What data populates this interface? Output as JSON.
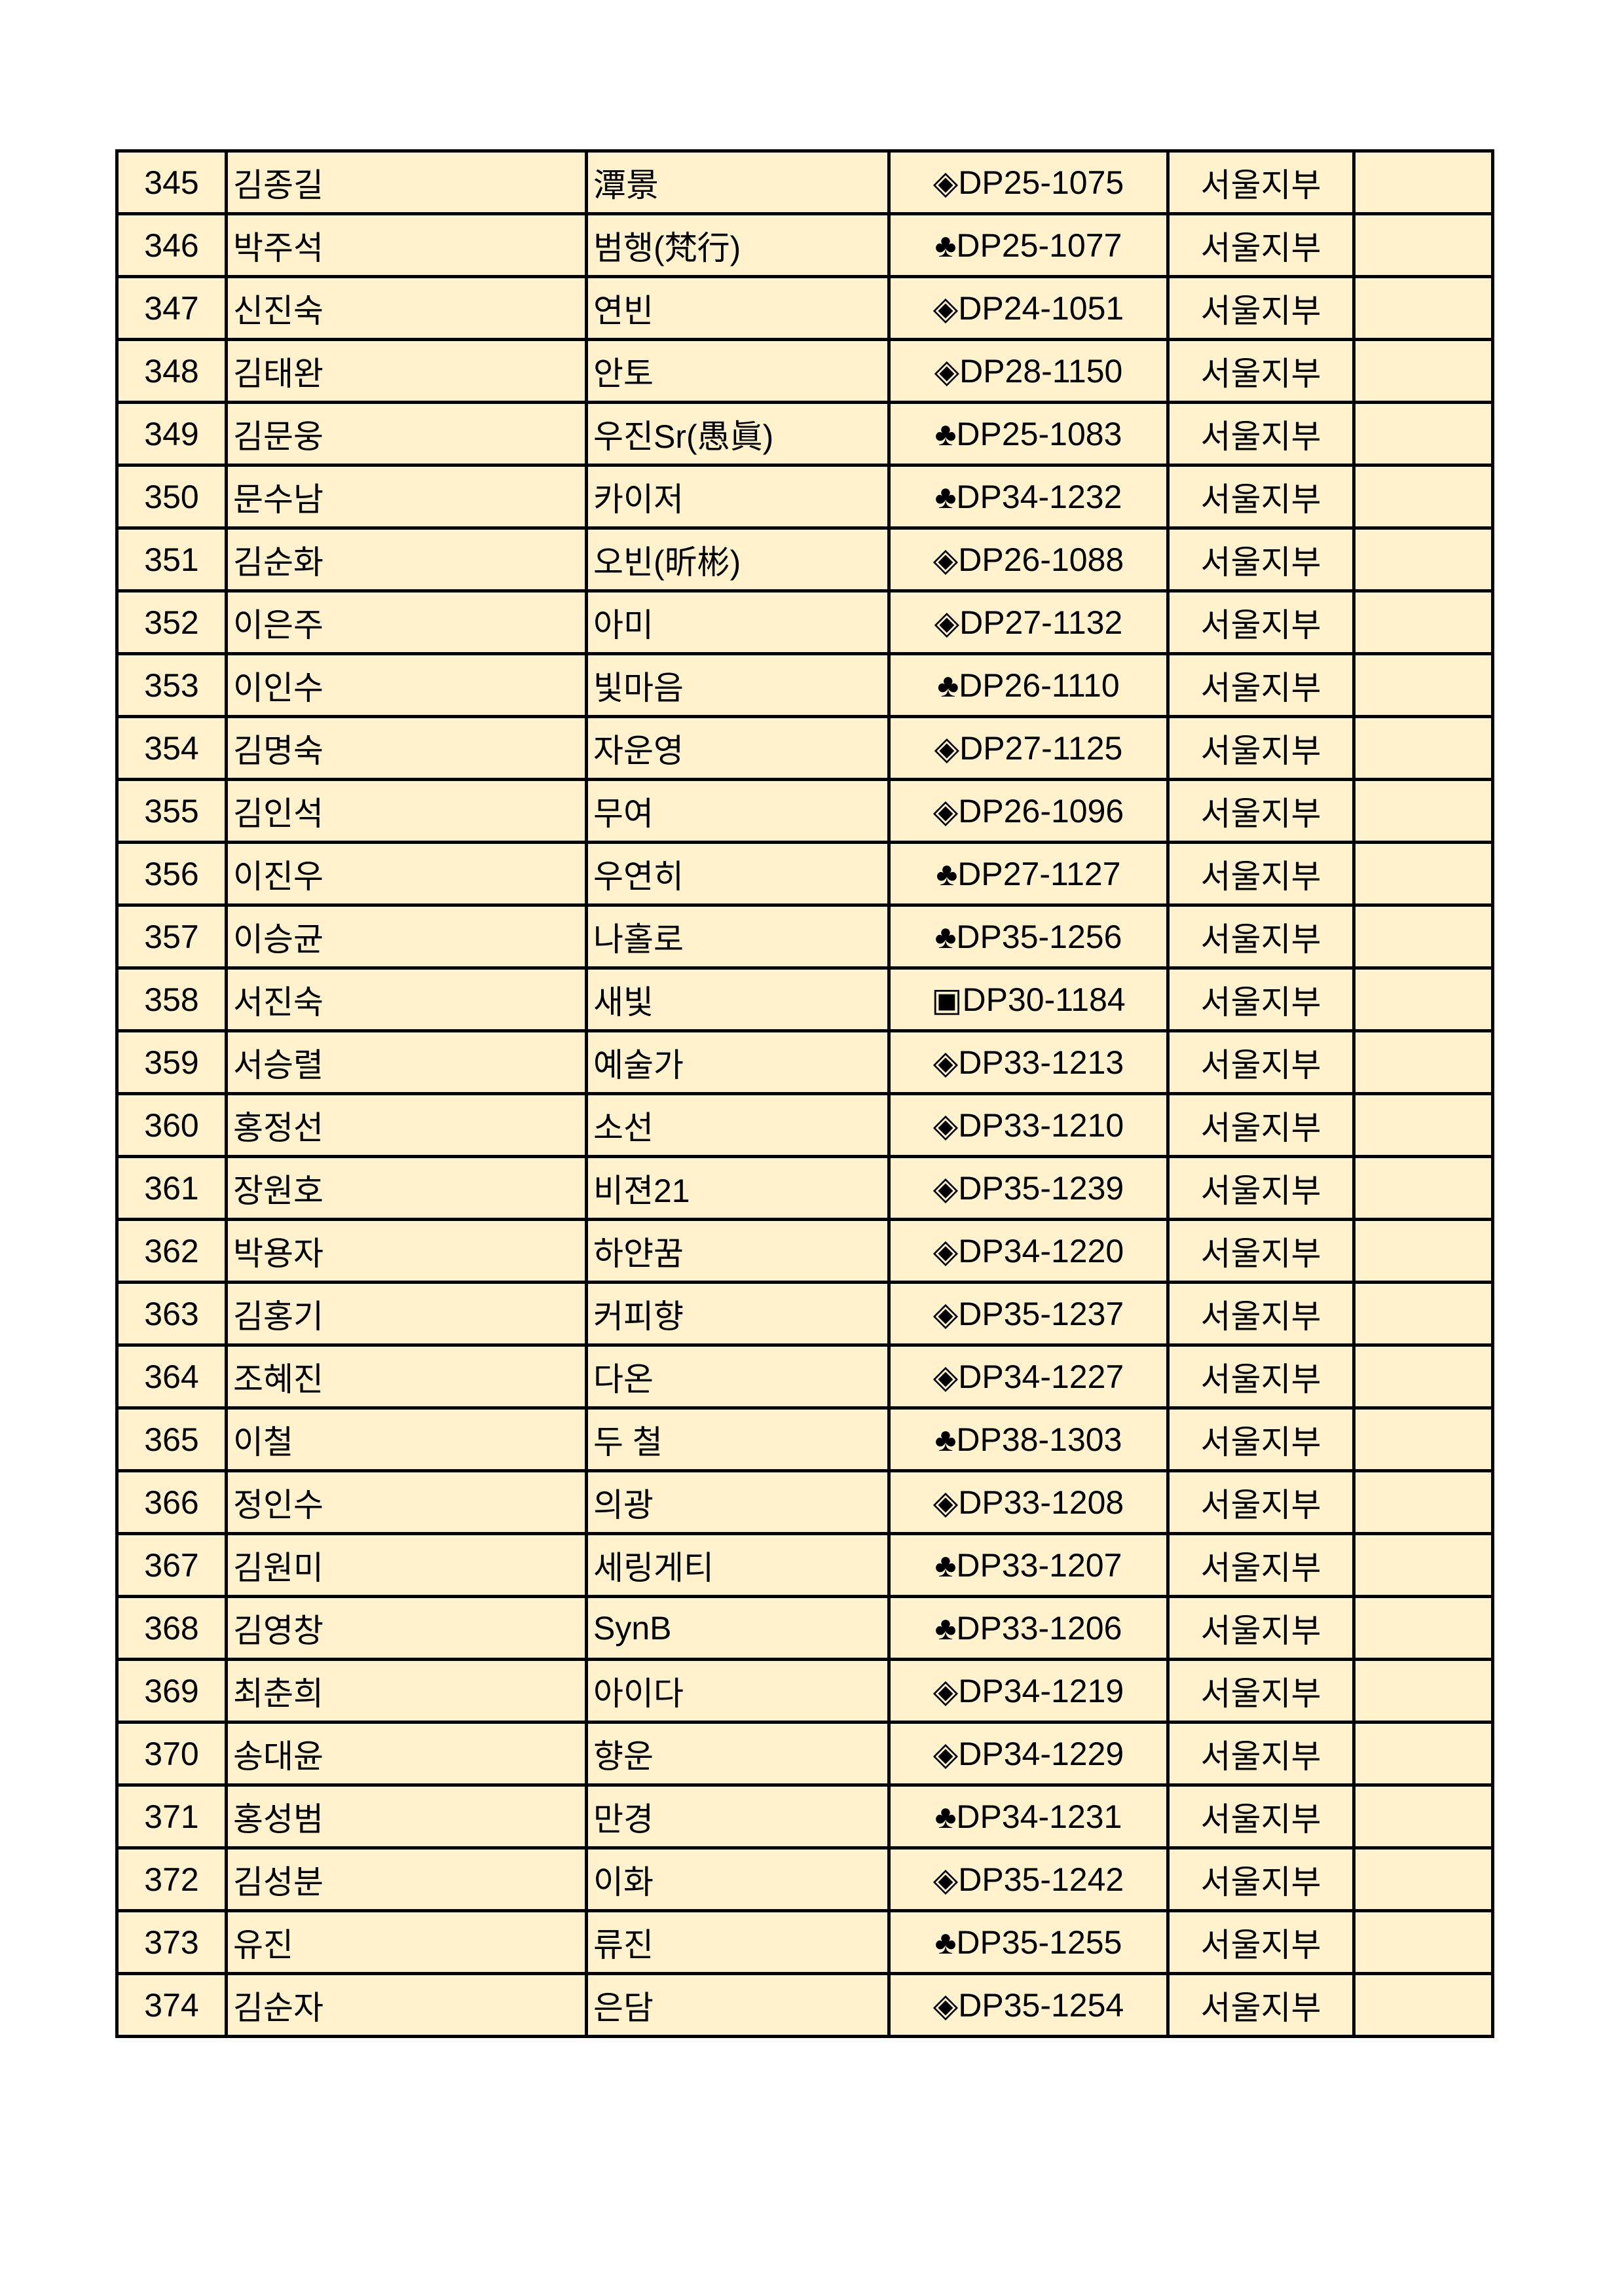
{
  "rows": [
    {
      "no": "345",
      "name": "김종길",
      "nick": "潭景",
      "code": "◈DP25-1075",
      "branch": "서울지부",
      "note": ""
    },
    {
      "no": "346",
      "name": "박주석",
      "nick": "범행(梵行)",
      "code": "♣DP25-1077",
      "branch": "서울지부",
      "note": ""
    },
    {
      "no": "347",
      "name": "신진숙",
      "nick": "연빈",
      "code": "◈DP24-1051",
      "branch": "서울지부",
      "note": ""
    },
    {
      "no": "348",
      "name": "김태완",
      "nick": "안토",
      "code": "◈DP28-1150",
      "branch": "서울지부",
      "note": ""
    },
    {
      "no": "349",
      "name": "김문웅",
      "nick": "우진Sr(愚眞)",
      "code": "♣DP25-1083",
      "branch": "서울지부",
      "note": ""
    },
    {
      "no": "350",
      "name": "문수남",
      "nick": "카이저",
      "code": "♣DP34-1232",
      "branch": "서울지부",
      "note": ""
    },
    {
      "no": "351",
      "name": "김순화",
      "nick": "오빈(昕彬)",
      "code": "◈DP26-1088",
      "branch": "서울지부",
      "note": ""
    },
    {
      "no": "352",
      "name": "이은주",
      "nick": "아미",
      "code": "◈DP27-1132",
      "branch": "서울지부",
      "note": ""
    },
    {
      "no": "353",
      "name": "이인수",
      "nick": "빛마음",
      "code": "♣DP26-1110",
      "branch": "서울지부",
      "note": ""
    },
    {
      "no": "354",
      "name": "김명숙",
      "nick": "자운영",
      "code": "◈DP27-1125",
      "branch": "서울지부",
      "note": ""
    },
    {
      "no": "355",
      "name": "김인석",
      "nick": "무여",
      "code": "◈DP26-1096",
      "branch": "서울지부",
      "note": ""
    },
    {
      "no": "356",
      "name": "이진우",
      "nick": "우연히",
      "code": "♣DP27-1127",
      "branch": "서울지부",
      "note": ""
    },
    {
      "no": "357",
      "name": "이승균",
      "nick": "나홀로",
      "code": "♣DP35-1256",
      "branch": "서울지부",
      "note": ""
    },
    {
      "no": "358",
      "name": "서진숙",
      "nick": "새빛",
      "code": "▣DP30-1184",
      "branch": "서울지부",
      "note": ""
    },
    {
      "no": "359",
      "name": "서승렬",
      "nick": "예술가",
      "code": "◈DP33-1213",
      "branch": "서울지부",
      "note": ""
    },
    {
      "no": "360",
      "name": "홍정선",
      "nick": "소선",
      "code": "◈DP33-1210",
      "branch": "서울지부",
      "note": ""
    },
    {
      "no": "361",
      "name": "장원호",
      "nick": "비젼21",
      "code": "◈DP35-1239",
      "branch": "서울지부",
      "note": ""
    },
    {
      "no": "362",
      "name": "박용자",
      "nick": "하얀꿈",
      "code": "◈DP34-1220",
      "branch": "서울지부",
      "note": ""
    },
    {
      "no": "363",
      "name": "김홍기",
      "nick": "커피향",
      "code": "◈DP35-1237",
      "branch": "서울지부",
      "note": ""
    },
    {
      "no": "364",
      "name": "조혜진",
      "nick": "다온",
      "code": "◈DP34-1227",
      "branch": "서울지부",
      "note": ""
    },
    {
      "no": "365",
      "name": "이철",
      "nick": "두 철",
      "code": "♣DP38-1303",
      "branch": "서울지부",
      "note": ""
    },
    {
      "no": "366",
      "name": "정인수",
      "nick": "의광",
      "code": "◈DP33-1208",
      "branch": "서울지부",
      "note": ""
    },
    {
      "no": "367",
      "name": "김원미",
      "nick": "세링게티",
      "code": "♣DP33-1207",
      "branch": "서울지부",
      "note": ""
    },
    {
      "no": "368",
      "name": "김영창",
      "nick": "SynB",
      "code": "♣DP33-1206",
      "branch": "서울지부",
      "note": ""
    },
    {
      "no": "369",
      "name": "최춘희",
      "nick": "아이다",
      "code": "◈DP34-1219",
      "branch": "서울지부",
      "note": ""
    },
    {
      "no": "370",
      "name": "송대윤",
      "nick": "향운",
      "code": "◈DP34-1229",
      "branch": "서울지부",
      "note": ""
    },
    {
      "no": "371",
      "name": "홍성범",
      "nick": "만경",
      "code": "♣DP34-1231",
      "branch": "서울지부",
      "note": ""
    },
    {
      "no": "372",
      "name": "김성분",
      "nick": "이화",
      "code": "◈DP35-1242",
      "branch": "서울지부",
      "note": ""
    },
    {
      "no": "373",
      "name": "유진",
      "nick": "류진",
      "code": "♣DP35-1255",
      "branch": "서울지부",
      "note": ""
    },
    {
      "no": "374",
      "name": "김순자",
      "nick": "은담",
      "code": "◈DP35-1254",
      "branch": "서울지부",
      "note": ""
    }
  ],
  "colors": {
    "cell_background": "#fff2cc",
    "border": "#000000"
  }
}
